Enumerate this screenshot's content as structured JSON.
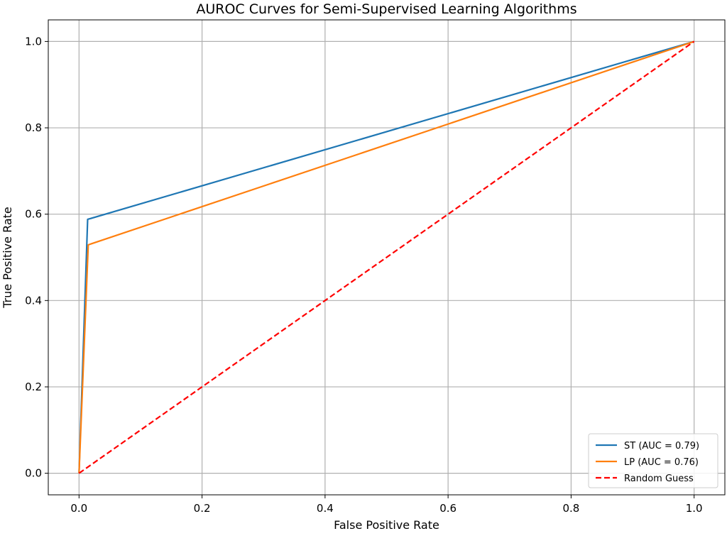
{
  "chart_data": {
    "type": "line",
    "title": "AUROC Curves for Semi-Supervised Learning Algorithms",
    "xlabel": "False Positive Rate",
    "ylabel": "True Positive Rate",
    "xlim": [
      -0.05,
      1.05
    ],
    "ylim": [
      -0.05,
      1.05
    ],
    "xticks": [
      0.0,
      0.2,
      0.4,
      0.6,
      0.8,
      1.0
    ],
    "yticks": [
      0.0,
      0.2,
      0.4,
      0.6,
      0.8,
      1.0
    ],
    "xtick_labels": [
      "0.0",
      "0.2",
      "0.4",
      "0.6",
      "0.8",
      "1.0"
    ],
    "ytick_labels": [
      "0.0",
      "0.2",
      "0.4",
      "0.6",
      "0.8",
      "1.0"
    ],
    "grid": true,
    "legend_position": "lower-right",
    "series": [
      {
        "name": "ST (AUC = 0.79)",
        "color": "#1f77b4",
        "style": "solid",
        "x": [
          0.0,
          0.014,
          1.0
        ],
        "y": [
          0.0,
          0.588,
          1.0
        ]
      },
      {
        "name": "LP (AUC = 0.76)",
        "color": "#ff7f0e",
        "style": "solid",
        "x": [
          0.0,
          0.015,
          1.0
        ],
        "y": [
          0.0,
          0.529,
          1.0
        ]
      },
      {
        "name": "Random Guess",
        "color": "#ff0000",
        "style": "dashed",
        "x": [
          0.0,
          1.0
        ],
        "y": [
          0.0,
          1.0
        ]
      }
    ]
  }
}
